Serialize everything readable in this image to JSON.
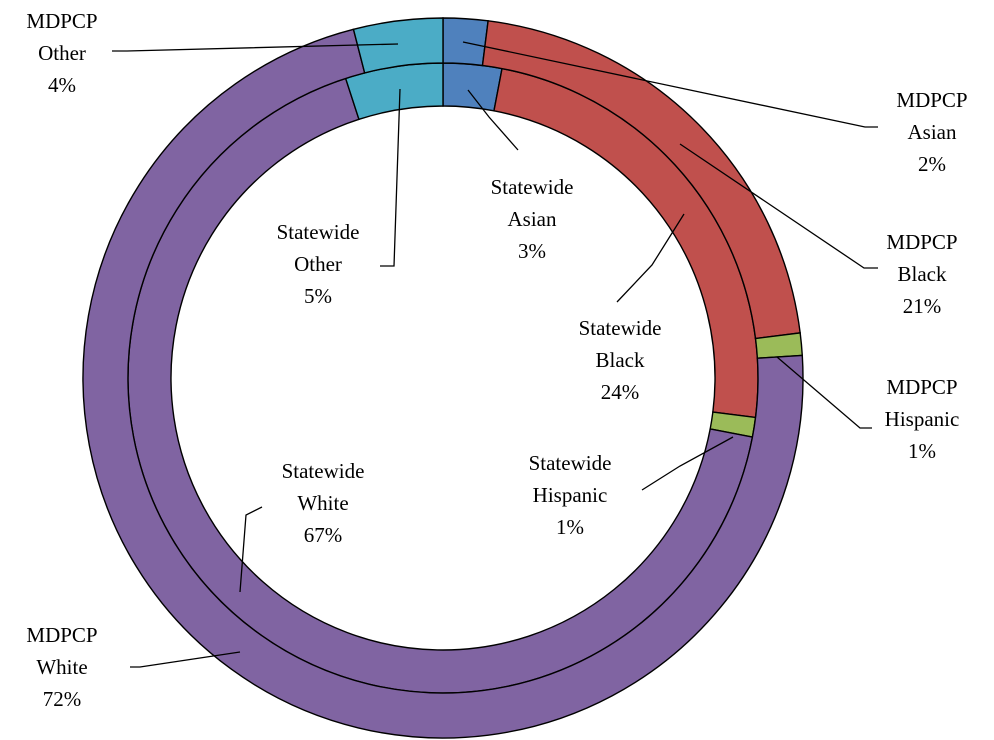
{
  "chart_data": {
    "type": "pie",
    "variant": "doughnut",
    "title": "",
    "start_angle_deg": 0,
    "direction": "clockwise",
    "categories": [
      "Asian",
      "Black",
      "Hispanic",
      "White",
      "Other"
    ],
    "colors": {
      "Asian": "#4F81BD",
      "Black": "#C0504D",
      "Hispanic": "#9BBB59",
      "White": "#8064A2",
      "Other": "#4BACC6"
    },
    "series": [
      {
        "name": "Statewide",
        "ring": "inner",
        "values": [
          3,
          24,
          1,
          67,
          5
        ],
        "labels": [
          [
            "Statewide",
            "Asian",
            "3%"
          ],
          [
            "Statewide",
            "Black",
            "24%"
          ],
          [
            "Statewide",
            "Hispanic",
            "1%"
          ],
          [
            "Statewide",
            "White",
            "67%"
          ],
          [
            "Statewide",
            "Other",
            "5%"
          ]
        ]
      },
      {
        "name": "MDPCP",
        "ring": "outer",
        "values": [
          2,
          21,
          1,
          72,
          4
        ],
        "labels": [
          [
            "MDPCP",
            "Asian",
            "2%"
          ],
          [
            "MDPCP",
            "Black",
            "21%"
          ],
          [
            "MDPCP",
            "Hispanic",
            "1%"
          ],
          [
            "MDPCP",
            "White",
            "72%"
          ],
          [
            "MDPCP",
            "Other",
            "4%"
          ]
        ]
      }
    ]
  }
}
